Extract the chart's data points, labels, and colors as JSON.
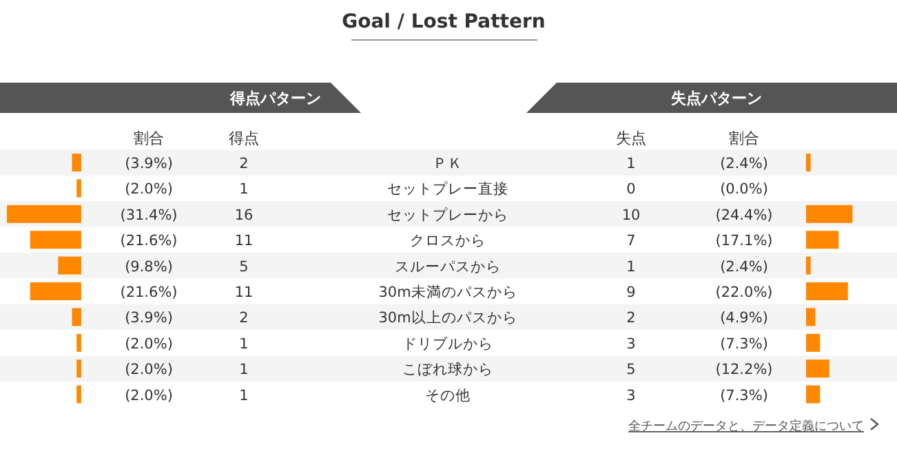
{
  "chart_data": [
    {
      "type": "bar",
      "orientation": "horizontal",
      "title": "Goal / Lost Pattern",
      "subtitle": "得点パターン",
      "categories": [
        "ＰＫ",
        "セットプレー直接",
        "セットプレーから",
        "クロスから",
        "スルーパスから",
        "30m未満のパスから",
        "30m以上のパスから",
        "ドリブルから",
        "こぼれ球から",
        "その他"
      ],
      "values": [
        2,
        1,
        16,
        11,
        5,
        11,
        2,
        1,
        1,
        1
      ],
      "data_labels": true,
      "color": "#ff8800",
      "tick_labels": "y",
      "annotations": [
        "割合",
        "得点",
        "(3.9%)",
        "(2.0%)",
        "(31.4%)",
        "(21.6%)",
        "(9.8%)",
        "(21.6%)",
        "(3.9%)",
        "(2.0%)",
        "(2.0%)",
        "(2.0%)"
      ]
    },
    {
      "type": "bar",
      "orientation": "horizontal",
      "title": "失点パターン",
      "categories": [
        null,
        null,
        null,
        null,
        null,
        null,
        null,
        null,
        null,
        null
      ],
      "values": [
        1,
        0,
        10,
        7,
        1,
        9,
        2,
        3,
        5,
        3
      ],
      "data_labels": true,
      "color": "#ff8800",
      "tick_labels": false,
      "annotations": [
        "失点",
        "割合",
        "(2.4%)",
        "(0.0%)",
        "(24.4%)",
        "(17.1%)",
        "(2.4%)",
        "(22.0%)",
        "(4.9%)",
        "(7.3%)",
        "(12.2%)",
        "(7.3%)",
        "全チームのデータと、データ定義について"
      ]
    }
  ]
}
